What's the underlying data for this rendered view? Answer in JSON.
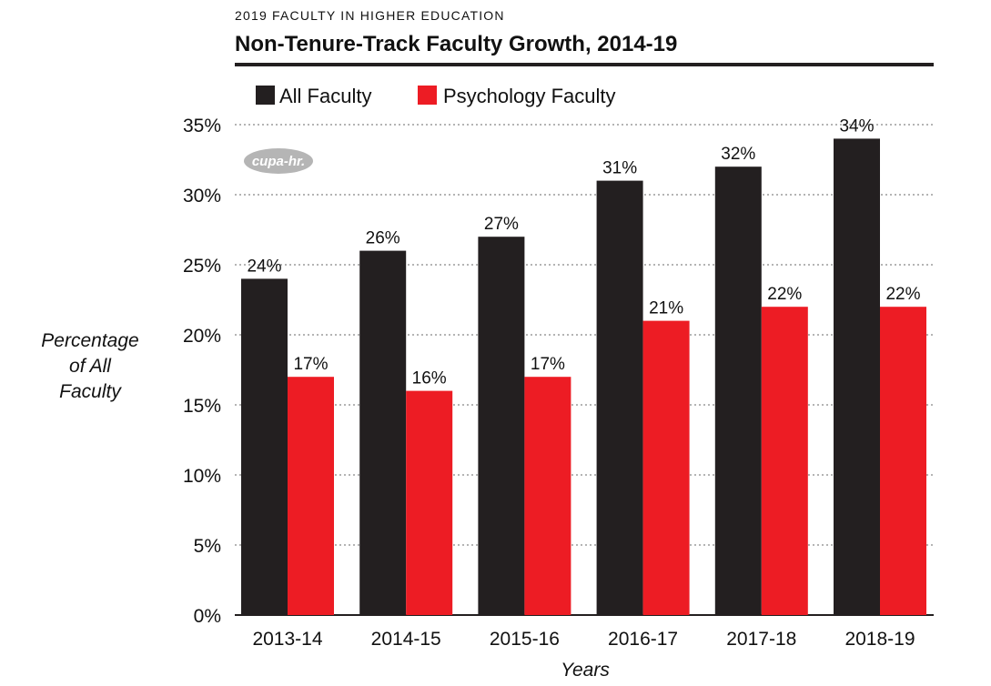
{
  "kicker": "2019 FACULTY IN HIGHER EDUCATION",
  "logo_text": "cupa-hr.",
  "colors": {
    "all_faculty": "#231f20",
    "psychology_faculty": "#ed1c24",
    "grid": "#888888",
    "logo": "#b5b5b5"
  },
  "chart_data": {
    "type": "bar",
    "title": "Non-Tenure-Track Faculty Growth, 2014-19",
    "xlabel": "Years",
    "ylabel": "Percentage of All Faculty",
    "ylabel_lines": [
      "Percentage",
      "of All",
      "Faculty"
    ],
    "categories": [
      "2013-14",
      "2014-15",
      "2015-16",
      "2016-17",
      "2017-18",
      "2018-19"
    ],
    "series": [
      {
        "name": "All Faculty",
        "values": [
          24,
          26,
          27,
          31,
          32,
          34
        ],
        "labels": [
          "24%",
          "26%",
          "27%",
          "31%",
          "32%",
          "34%"
        ]
      },
      {
        "name": "Psychology Faculty",
        "values": [
          17,
          16,
          17,
          21,
          22,
          22
        ],
        "labels": [
          "17%",
          "16%",
          "17%",
          "21%",
          "22%",
          "22%"
        ]
      }
    ],
    "ylim": [
      0,
      35
    ],
    "yticks": [
      0,
      5,
      10,
      15,
      20,
      25,
      30,
      35
    ],
    "ytick_labels": [
      "0%",
      "5%",
      "10%",
      "15%",
      "20%",
      "25%",
      "30%",
      "35%"
    ],
    "grid": true,
    "legend_position": "top-left"
  }
}
